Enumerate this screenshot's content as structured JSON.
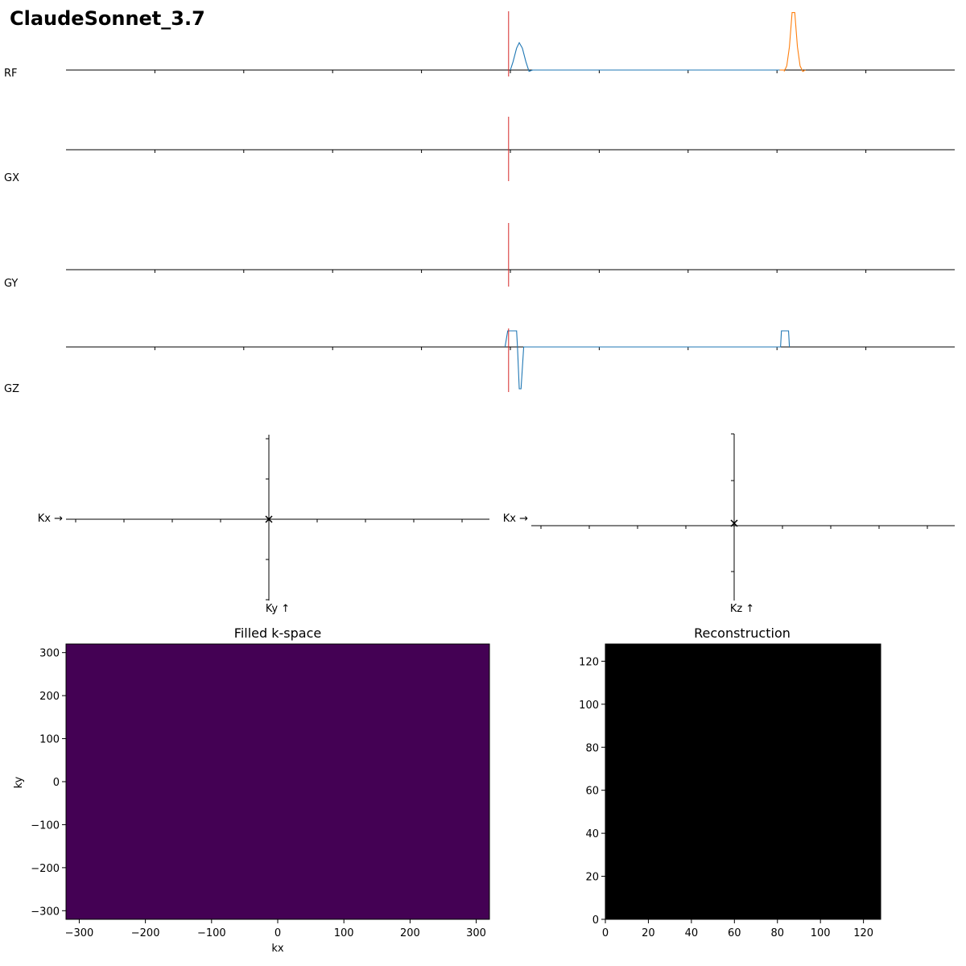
{
  "figure": {
    "title": "ClaudeSonnet_3.7"
  },
  "colors": {
    "axis": "#000000",
    "marker_line": "#d62728",
    "series_blue": "#1f77b4",
    "series_orange": "#ff7f0e",
    "kspace_fill": "#440154",
    "recon_fill": "#000000"
  },
  "chart_data": [
    {
      "type": "line",
      "panel": "sequence",
      "channels": [
        {
          "label": "RF",
          "series": [
            {
              "color": "series_blue",
              "x": [
                0.0,
                0.3,
                0.7,
                1.0,
                1.35,
                1.75,
                2.1,
                2.5
              ],
              "y": [
                0,
                0.3,
                0.8,
                1.0,
                0.8,
                0.3,
                -0.05,
                0
              ]
            },
            {
              "color": "series_blue",
              "x": [
                2.5,
                30.3
              ],
              "y": [
                0,
                0
              ]
            },
            {
              "color": "series_orange",
              "x": [
                30.3,
                30.8
              ],
              "y": [
                0,
                0
              ]
            },
            {
              "color": "series_orange",
              "x": [
                30.8,
                31.1,
                31.4,
                31.7,
                32.0,
                32.3,
                32.6,
                32.9,
                33.2
              ],
              "y": [
                -0.05,
                0.15,
                0.85,
                2.1,
                2.1,
                0.85,
                0.15,
                -0.05,
                0
              ]
            }
          ],
          "marker_x": -0.2
        },
        {
          "label": "GX",
          "series": [],
          "marker_x": -0.2
        },
        {
          "label": "GY",
          "series": [],
          "marker_x": -0.2
        },
        {
          "label": "GZ",
          "series": [
            {
              "color": "series_blue",
              "x": [
                -0.6,
                -0.3,
                0.7,
                0.8,
                1.0,
                1.2,
                1.5,
                1.6,
                1.8,
                2.0,
                30.4,
                30.5,
                31.3,
                31.4
              ],
              "y": [
                0,
                1,
                1,
                0,
                -2.6,
                -2.6,
                0,
                0,
                0,
                0,
                0,
                1,
                1,
                0
              ]
            }
          ],
          "marker_x": -0.2
        }
      ]
    },
    {
      "type": "scatter",
      "panel": "kspace_xy",
      "x_label": "Kx →",
      "y_label": "Ky ↑",
      "points": [
        [
          0,
          0
        ]
      ],
      "marker": "x"
    },
    {
      "type": "scatter",
      "panel": "kspace_xz",
      "x_label": "Kx →",
      "y_label": "Kz ↑",
      "points": [
        [
          0,
          0
        ]
      ],
      "marker": "x"
    },
    {
      "type": "heatmap",
      "panel": "filled_kspace",
      "title": "Filled k-space",
      "xlabel": "kx",
      "ylabel": "ky",
      "xlim": [
        -320,
        320
      ],
      "ylim": [
        -320,
        320
      ],
      "x_ticks": [
        "−300",
        "−200",
        "−100",
        "0",
        "100",
        "200",
        "300"
      ],
      "x_tick_values": [
        -300,
        -200,
        -100,
        0,
        100,
        200,
        300
      ],
      "y_ticks": [
        "300",
        "200",
        "100",
        "0",
        "−100",
        "−200",
        "−300"
      ],
      "y_tick_values": [
        300,
        200,
        100,
        0,
        -100,
        -200,
        -300
      ],
      "values": 0
    },
    {
      "type": "heatmap",
      "panel": "reconstruction",
      "title": "Reconstruction",
      "xlabel": "",
      "ylabel": "",
      "xlim": [
        0,
        128
      ],
      "ylim": [
        0,
        128
      ],
      "x_ticks": [
        "0",
        "20",
        "40",
        "60",
        "80",
        "100",
        "120"
      ],
      "x_tick_values": [
        0,
        20,
        40,
        60,
        80,
        100,
        120
      ],
      "y_ticks": [
        "120",
        "100",
        "80",
        "60",
        "40",
        "20",
        "0"
      ],
      "y_tick_values": [
        120,
        100,
        80,
        60,
        40,
        20,
        0
      ],
      "values": 0
    }
  ]
}
